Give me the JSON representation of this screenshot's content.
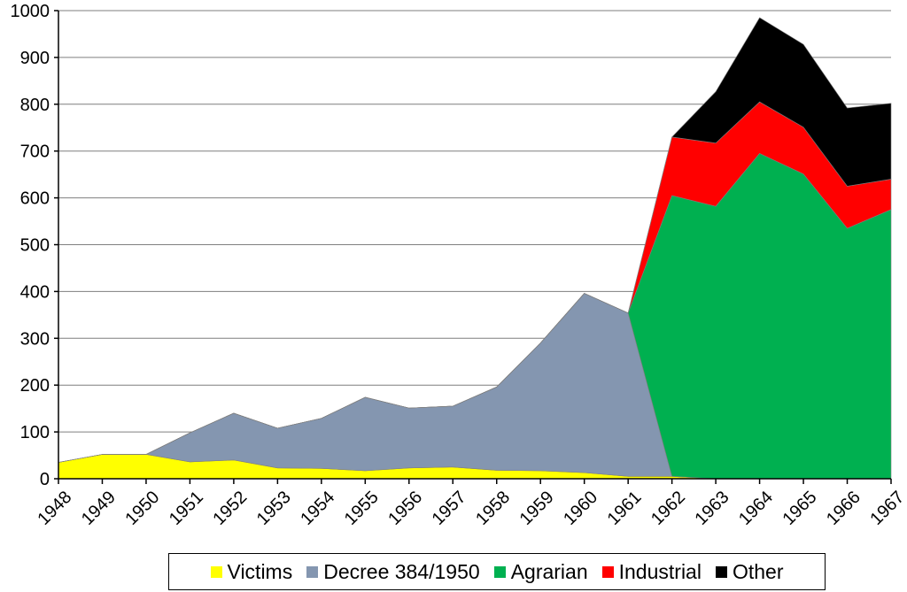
{
  "chart_data": {
    "type": "area",
    "stacked": true,
    "x": [
      "1948",
      "1949",
      "1950",
      "1951",
      "1952",
      "1953",
      "1954",
      "1955",
      "1956",
      "1957",
      "1958",
      "1959",
      "1960",
      "1961",
      "1962",
      "1963",
      "1964",
      "1965",
      "1966",
      "1967"
    ],
    "ylim": [
      0,
      1000
    ],
    "yticks": [
      "0",
      "100",
      "200",
      "300",
      "400",
      "500",
      "600",
      "700",
      "800",
      "900",
      "1000"
    ],
    "grid": true,
    "legend_position": "bottom",
    "series": [
      {
        "name": "Victims",
        "color": "#ffff00",
        "values": [
          35,
          52,
          52,
          36,
          40,
          23,
          22,
          17,
          23,
          25,
          18,
          17,
          13,
          5,
          5,
          0,
          0,
          0,
          0,
          0
        ]
      },
      {
        "name": "Decree 384/1950",
        "color": "#8496b0",
        "values": [
          0,
          0,
          0,
          62,
          100,
          85,
          107,
          157,
          128,
          130,
          178,
          273,
          383,
          349,
          0,
          0,
          0,
          0,
          0,
          0
        ]
      },
      {
        "name": "Agrarian",
        "color": "#00b050",
        "values": [
          0,
          0,
          0,
          0,
          0,
          0,
          0,
          0,
          0,
          0,
          0,
          0,
          0,
          0,
          600,
          582,
          695,
          651,
          535,
          575
        ]
      },
      {
        "name": "Industrial",
        "color": "#ff0000",
        "values": [
          0,
          0,
          0,
          0,
          0,
          0,
          0,
          0,
          0,
          0,
          0,
          0,
          0,
          0,
          125,
          135,
          110,
          100,
          90,
          65
        ]
      },
      {
        "name": "Other",
        "color": "#000000",
        "values": [
          0,
          0,
          0,
          0,
          0,
          0,
          0,
          0,
          0,
          0,
          0,
          0,
          0,
          0,
          0,
          110,
          180,
          177,
          167,
          162
        ]
      }
    ]
  }
}
